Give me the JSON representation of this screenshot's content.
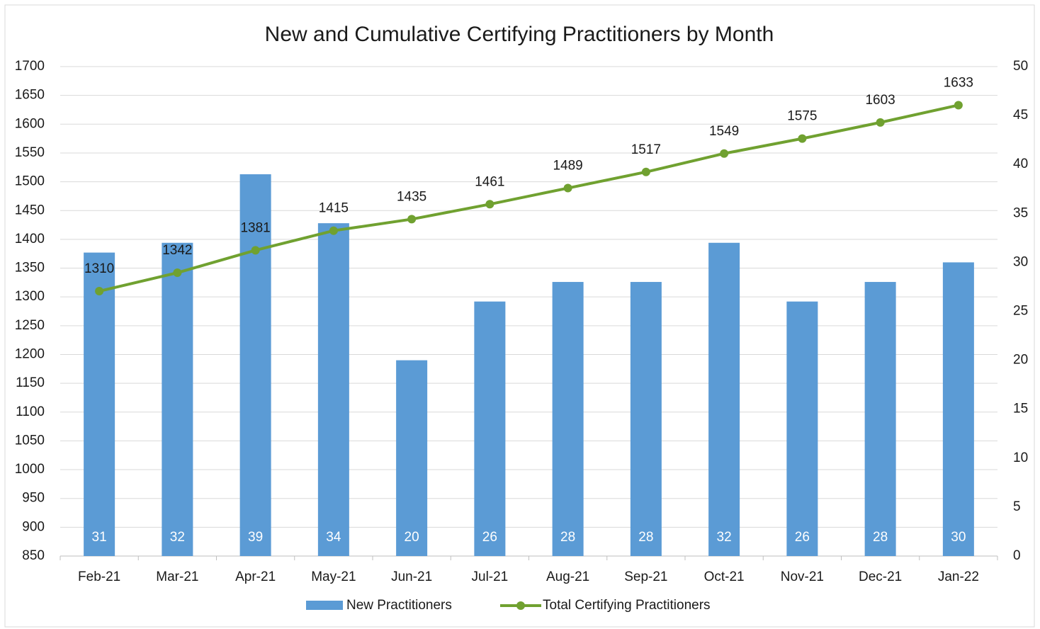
{
  "chart_data": {
    "type": "combo",
    "title": "New and Cumulative Certifying Practitioners by Month",
    "categories": [
      "Feb-21",
      "Mar-21",
      "Apr-21",
      "May-21",
      "Jun-21",
      "Jul-21",
      "Aug-21",
      "Sep-21",
      "Oct-21",
      "Nov-21",
      "Dec-21",
      "Jan-22"
    ],
    "series": [
      {
        "name": "New Practitioners",
        "type": "bar",
        "axis": "y2",
        "color": "#5b9bd5",
        "values": [
          31,
          32,
          39,
          34,
          20,
          26,
          28,
          28,
          32,
          26,
          28,
          30
        ]
      },
      {
        "name": "Total Certifying Practitioners",
        "type": "line",
        "axis": "y",
        "color": "#70a130",
        "values": [
          1310,
          1342,
          1381,
          1415,
          1435,
          1461,
          1489,
          1517,
          1549,
          1575,
          1603,
          1633
        ]
      }
    ],
    "ylim": [
      850,
      1700
    ],
    "yticks": [
      850,
      900,
      950,
      1000,
      1050,
      1100,
      1150,
      1200,
      1250,
      1300,
      1350,
      1400,
      1450,
      1500,
      1550,
      1600,
      1650,
      1700
    ],
    "y2lim": [
      0,
      50
    ],
    "y2ticks": [
      0,
      5,
      10,
      15,
      20,
      25,
      30,
      35,
      40,
      45,
      50
    ],
    "grid": true,
    "legend": "bottom"
  }
}
